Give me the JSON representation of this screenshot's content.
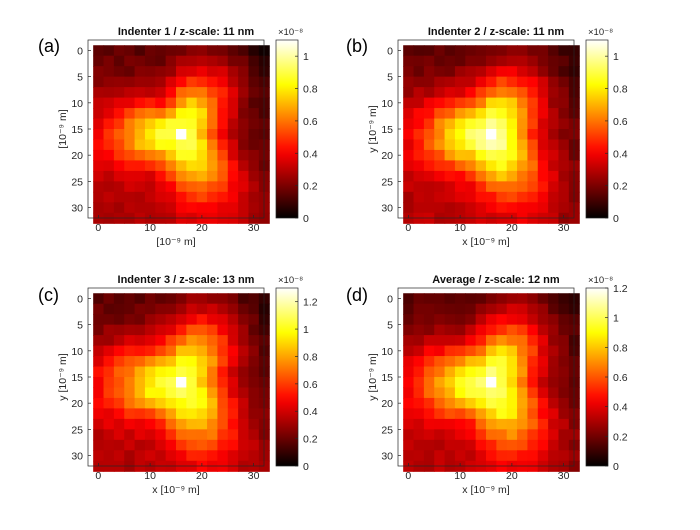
{
  "figure": {
    "panels": [
      {
        "letter": "(a)",
        "title": "Indenter 1 / z-scale: 11 nm",
        "xlabel": "[10⁻⁹ m]",
        "ylabel": "[10⁻⁹ m]",
        "cbar_exp": "×10⁻⁸"
      },
      {
        "letter": "(b)",
        "title": "Indenter 2 / z-scale: 11 nm",
        "xlabel": "x [10⁻⁹ m]",
        "ylabel": "y [10⁻⁹ m]",
        "cbar_exp": "×10⁻⁸"
      },
      {
        "letter": "(c)",
        "title": "Indenter 3 / z-scale: 13 nm",
        "xlabel": "x [10⁻⁹ m]",
        "ylabel": "y [10⁻⁹ m]",
        "cbar_exp": "×10⁻⁸"
      },
      {
        "letter": "(d)",
        "title": "Average / z-scale: 12 nm",
        "xlabel": "x [10⁻⁹ m]",
        "ylabel": "y [10⁻⁹ m]",
        "cbar_exp": "×10⁻⁸"
      }
    ]
  },
  "chart_data": [
    {
      "type": "heatmap",
      "title": "Indenter 1 / z-scale: 11 nm",
      "xlabel": "[10⁻⁹ m]",
      "ylabel": "[10⁻⁹ m]",
      "xlim": [
        -2,
        32
      ],
      "ylim": [
        -2,
        32
      ],
      "y_reversed": true,
      "xticks": [
        0,
        10,
        20,
        30
      ],
      "yticks": [
        0,
        5,
        10,
        15,
        20,
        25,
        30
      ],
      "grid_size": 17,
      "cell_step": 2,
      "peak": [
        16,
        16
      ],
      "colormap": "hot",
      "clim": [
        0,
        1.1
      ],
      "cbar_ticks": [
        0,
        0.2,
        0.4,
        0.6,
        0.8,
        1
      ],
      "cbar_exponent": -8,
      "shape": {
        "a": 0.55,
        "b": 0.3,
        "c": 0.35,
        "sigma": 10,
        "seed": 1
      }
    },
    {
      "type": "heatmap",
      "title": "Indenter 2 / z-scale: 11 nm",
      "xlabel": "x [10⁻⁹ m]",
      "ylabel": "y [10⁻⁹ m]",
      "xlim": [
        -2,
        32
      ],
      "ylim": [
        -2,
        32
      ],
      "y_reversed": true,
      "xticks": [
        0,
        10,
        20,
        30
      ],
      "yticks": [
        0,
        5,
        10,
        15,
        20,
        25,
        30
      ],
      "grid_size": 17,
      "cell_step": 2,
      "peak": [
        16,
        16
      ],
      "colormap": "hot",
      "clim": [
        0,
        1.1
      ],
      "cbar_ticks": [
        0,
        0.2,
        0.4,
        0.6,
        0.8,
        1
      ],
      "cbar_exponent": -8,
      "shape": {
        "a": 0.6,
        "b": 0.32,
        "c": 0.25,
        "sigma": 10,
        "seed": 2
      }
    },
    {
      "type": "heatmap",
      "title": "Indenter 3 / z-scale: 13 nm",
      "xlabel": "x [10⁻⁹ m]",
      "ylabel": "y [10⁻⁹ m]",
      "xlim": [
        -2,
        32
      ],
      "ylim": [
        -2,
        32
      ],
      "y_reversed": true,
      "xticks": [
        0,
        10,
        20,
        30
      ],
      "yticks": [
        0,
        5,
        10,
        15,
        20,
        25,
        30
      ],
      "grid_size": 17,
      "cell_step": 2,
      "peak": [
        16,
        16
      ],
      "colormap": "hot",
      "clim": [
        0,
        1.3
      ],
      "cbar_ticks": [
        0,
        0.2,
        0.4,
        0.6,
        0.8,
        1,
        1.2
      ],
      "cbar_exponent": -8,
      "shape": {
        "a": 0.55,
        "b": 0.3,
        "c": 0.3,
        "sigma": 11,
        "seed": 3
      }
    },
    {
      "type": "heatmap",
      "title": "Average / z-scale: 12 nm",
      "xlabel": "x [10⁻⁹ m]",
      "ylabel": "y [10⁻⁹ m]",
      "xlim": [
        -2,
        32
      ],
      "ylim": [
        -2,
        32
      ],
      "y_reversed": true,
      "xticks": [
        0,
        10,
        20,
        30
      ],
      "yticks": [
        0,
        5,
        10,
        15,
        20,
        25,
        30
      ],
      "grid_size": 17,
      "cell_step": 2,
      "peak": [
        16,
        16
      ],
      "colormap": "hot",
      "clim": [
        0,
        1.2
      ],
      "cbar_ticks": [
        0,
        0.2,
        0.4,
        0.6,
        0.8,
        1,
        1.2
      ],
      "cbar_exponent": -8,
      "shape": {
        "a": 0.57,
        "b": 0.31,
        "c": 0.3,
        "sigma": 10.5,
        "seed": 4
      }
    }
  ]
}
